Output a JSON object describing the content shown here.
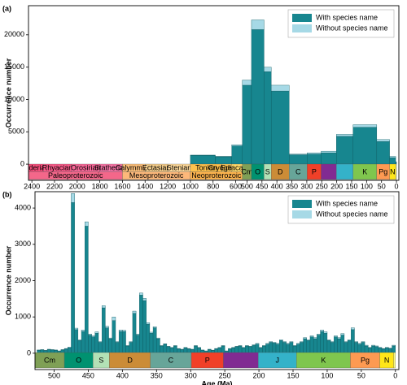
{
  "chart_data": [
    {
      "type": "histogram",
      "panel_label": "(a)",
      "ylabel": "Occurrence number",
      "xscale": "broken",
      "xbreak": 500,
      "xlim": [
        2430,
        -8
      ],
      "ylim": [
        -2500,
        24500
      ],
      "xticks": [
        2400,
        2200,
        2000,
        1800,
        1600,
        1400,
        1200,
        1000,
        800,
        600,
        500,
        450,
        400,
        350,
        300,
        250,
        200,
        150,
        100,
        50,
        0
      ],
      "yticks": [
        0,
        5000,
        10000,
        15000,
        20000
      ],
      "legend": "upper right",
      "stacked": true,
      "bins": [
        1000,
        780,
        635,
        541,
        485,
        443,
        419,
        359,
        299,
        252,
        201,
        145,
        66,
        23,
        2.6,
        0
      ],
      "series": [
        {
          "name": "With species name",
          "color": "#17868f",
          "values": [
            1350,
            1150,
            2800,
            12200,
            20800,
            14300,
            11300,
            1450,
            1550,
            1750,
            4300,
            5700,
            3500,
            1000,
            300
          ]
        },
        {
          "name": "Without species name",
          "color": "#a6d9e6",
          "values": [
            50,
            50,
            200,
            800,
            1500,
            700,
            900,
            100,
            200,
            250,
            300,
            400,
            300,
            200,
            50
          ]
        }
      ],
      "timescale": [
        {
          "name": "Paleoproterozoic",
          "rank": "era",
          "start": 2500,
          "end": 1600,
          "color": "#f4678a"
        },
        {
          "name": "Mesoproterozoic",
          "rank": "era",
          "start": 1600,
          "end": 1000,
          "color": "#fdb87a"
        },
        {
          "name": "Neoproterozoic",
          "rank": "era",
          "start": 1000,
          "end": 541,
          "color": "#fdb44e"
        },
        {
          "name": "Siderian",
          "rank": "period",
          "start": 2500,
          "end": 2300,
          "color": "#f74f7c"
        },
        {
          "name": "Rhyacian",
          "rank": "period",
          "start": 2300,
          "end": 2050,
          "color": "#f75b89"
        },
        {
          "name": "Orosirian",
          "rank": "period",
          "start": 2050,
          "end": 1800,
          "color": "#f76898"
        },
        {
          "name": "Statherian",
          "rank": "period",
          "start": 1800,
          "end": 1600,
          "color": "#f875a7"
        },
        {
          "name": "Calymmian",
          "rank": "period",
          "start": 1600,
          "end": 1400,
          "color": "#fdc07a"
        },
        {
          "name": "Ectasian",
          "rank": "period",
          "start": 1400,
          "end": 1200,
          "color": "#f3cc8a"
        },
        {
          "name": "Stenian",
          "rank": "period",
          "start": 1200,
          "end": 1000,
          "color": "#fed99a"
        },
        {
          "name": "Tonian",
          "rank": "period",
          "start": 1000,
          "end": 720,
          "color": "#fec24e"
        },
        {
          "name": "Cryogenian",
          "rank": "period",
          "start": 720,
          "end": 635,
          "color": "#fecc5c"
        },
        {
          "name": "Ediacaran",
          "rank": "period",
          "start": 635,
          "end": 541,
          "color": "#fed96a"
        },
        {
          "name": "Cm",
          "rank": "period",
          "start": 541,
          "end": 485,
          "color": "#7fa056"
        },
        {
          "name": "O",
          "rank": "period",
          "start": 485,
          "end": 443,
          "color": "#009270"
        },
        {
          "name": "S",
          "rank": "period",
          "start": 443,
          "end": 419,
          "color": "#b3e1b6"
        },
        {
          "name": "D",
          "rank": "period",
          "start": 419,
          "end": 359,
          "color": "#cb8c37"
        },
        {
          "name": "C",
          "rank": "period",
          "start": 359,
          "end": 299,
          "color": "#67a599"
        },
        {
          "name": "P",
          "rank": "period",
          "start": 299,
          "end": 252,
          "color": "#f04028"
        },
        {
          "name": null,
          "rank": "period",
          "start": 252,
          "end": 201,
          "color": "#812b92"
        },
        {
          "name": null,
          "rank": "period",
          "start": 201,
          "end": 145,
          "color": "#34b2c9"
        },
        {
          "name": "K",
          "rank": "period",
          "start": 145,
          "end": 66,
          "color": "#7fc64e"
        },
        {
          "name": "Pg",
          "rank": "period",
          "start": 66,
          "end": 23,
          "color": "#fd9a52"
        },
        {
          "name": "N",
          "rank": "period",
          "start": 23,
          "end": 2.6,
          "color": "#ffe619"
        },
        {
          "name": null,
          "rank": "period",
          "start": 2.6,
          "end": 0,
          "color": "#f9f97f"
        }
      ]
    },
    {
      "type": "histogram",
      "panel_label": "(b)",
      "ylabel": "Occurrence number",
      "xlabel": "Age (Ma)",
      "xlim": [
        528,
        -5
      ],
      "ylim": [
        -450,
        4450
      ],
      "xticks": [
        500,
        450,
        400,
        350,
        300,
        250,
        200,
        150,
        100,
        50,
        0
      ],
      "yticks": [
        0,
        1000,
        2000,
        3000,
        4000
      ],
      "legend": "upper right",
      "stacked": true,
      "bins": [
        525,
        520,
        515,
        510,
        505,
        500,
        495,
        490,
        485,
        480,
        475,
        470,
        465,
        460,
        455,
        450,
        445,
        440,
        435,
        430,
        425,
        420,
        415,
        410,
        405,
        400,
        395,
        390,
        385,
        380,
        375,
        370,
        365,
        360,
        355,
        350,
        345,
        340,
        335,
        330,
        325,
        320,
        315,
        310,
        305,
        300,
        295,
        290,
        285,
        280,
        275,
        270,
        265,
        260,
        255,
        250,
        245,
        240,
        235,
        230,
        225,
        220,
        215,
        210,
        205,
        200,
        195,
        190,
        185,
        180,
        175,
        170,
        165,
        160,
        155,
        150,
        145,
        140,
        135,
        130,
        125,
        120,
        115,
        110,
        105,
        100,
        95,
        90,
        85,
        80,
        75,
        70,
        65,
        60,
        55,
        50,
        45,
        40,
        35,
        30,
        25,
        20,
        15,
        10,
        5,
        0
      ],
      "series": [
        {
          "name": "With species name",
          "color": "#17868f",
          "values": [
            80,
            90,
            70,
            100,
            90,
            80,
            60,
            90,
            120,
            150,
            4150,
            650,
            350,
            600,
            3500,
            500,
            450,
            550,
            300,
            1250,
            700,
            400,
            900,
            300,
            600,
            600,
            200,
            300,
            1100,
            500,
            1600,
            1450,
            800,
            550,
            700,
            400,
            200,
            250,
            180,
            150,
            200,
            120,
            100,
            150,
            120,
            100,
            200,
            150,
            80,
            60,
            100,
            80,
            120,
            150,
            200,
            60,
            120,
            150,
            180,
            200,
            150,
            200,
            180,
            220,
            250,
            150,
            200,
            250,
            300,
            280,
            250,
            350,
            300,
            250,
            300,
            200,
            250,
            300,
            400,
            350,
            450,
            400,
            500,
            600,
            550,
            350,
            300,
            450,
            400,
            500,
            300,
            350,
            650,
            300,
            250,
            300,
            200,
            150,
            200,
            180,
            150,
            120,
            150,
            130,
            200
          ]
        },
        {
          "name": "Without species name",
          "color": "#a6d9e6",
          "values": [
            10,
            10,
            10,
            10,
            10,
            10,
            5,
            10,
            10,
            20,
            250,
            40,
            20,
            40,
            120,
            30,
            30,
            40,
            20,
            60,
            40,
            20,
            100,
            20,
            40,
            30,
            10,
            20,
            60,
            30,
            60,
            60,
            40,
            30,
            30,
            20,
            10,
            10,
            10,
            10,
            10,
            10,
            10,
            10,
            10,
            10,
            10,
            10,
            10,
            5,
            10,
            5,
            10,
            10,
            10,
            5,
            10,
            10,
            10,
            10,
            10,
            10,
            10,
            10,
            20,
            10,
            10,
            20,
            20,
            20,
            20,
            20,
            20,
            20,
            20,
            10,
            20,
            20,
            30,
            20,
            30,
            30,
            30,
            40,
            40,
            20,
            20,
            30,
            30,
            40,
            20,
            20,
            50,
            20,
            20,
            20,
            20,
            10,
            20,
            20,
            10,
            10,
            10,
            10,
            20
          ]
        }
      ],
      "timescale": [
        {
          "name": "Cm",
          "rank": "period",
          "start": 541,
          "end": 485,
          "color": "#7fa056"
        },
        {
          "name": "O",
          "rank": "period",
          "start": 485,
          "end": 443,
          "color": "#009270"
        },
        {
          "name": "S",
          "rank": "period",
          "start": 443,
          "end": 419,
          "color": "#b3e1b6"
        },
        {
          "name": "D",
          "rank": "period",
          "start": 419,
          "end": 359,
          "color": "#cb8c37"
        },
        {
          "name": "C",
          "rank": "period",
          "start": 359,
          "end": 299,
          "color": "#67a599"
        },
        {
          "name": "P",
          "rank": "period",
          "start": 299,
          "end": 252,
          "color": "#f04028"
        },
        {
          "name": null,
          "rank": "period",
          "start": 252,
          "end": 201,
          "color": "#812b92"
        },
        {
          "name": "J",
          "rank": "period",
          "start": 201,
          "end": 145,
          "color": "#34b2c9"
        },
        {
          "name": "K",
          "rank": "period",
          "start": 145,
          "end": 66,
          "color": "#7fc64e"
        },
        {
          "name": "Pg",
          "rank": "period",
          "start": 66,
          "end": 23,
          "color": "#fd9a52"
        },
        {
          "name": "N",
          "rank": "period",
          "start": 23,
          "end": 2.6,
          "color": "#ffe619"
        },
        {
          "name": null,
          "rank": "period",
          "start": 2.6,
          "end": 0,
          "color": "#f9f97f"
        }
      ]
    }
  ]
}
